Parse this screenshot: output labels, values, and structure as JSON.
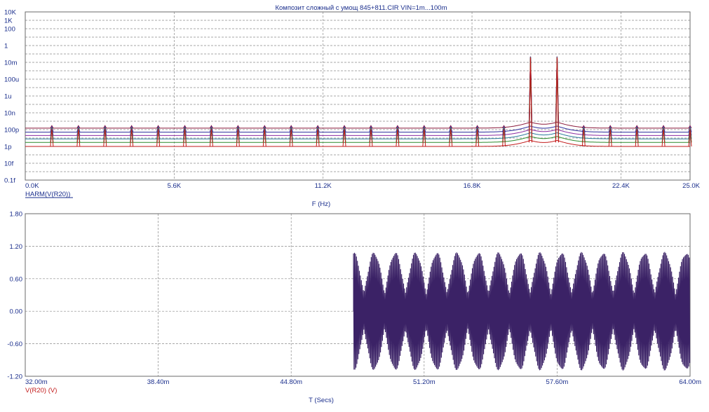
{
  "title": "Композит сложный с умощ 845+811.CIR VIN=1m...100m",
  "colors": {
    "axis_text": "#1a2e8c",
    "grid": "#8a8a8a",
    "frame": "#6a6a6a",
    "waveform": "#3b2266",
    "series": [
      "#8b1a3b",
      "#2a2a9a",
      "#8a2aa0",
      "#2a7a9a",
      "#2a8a2a",
      "#c21a1a"
    ]
  },
  "chart_data": [
    {
      "type": "line",
      "name": "spectrum",
      "trace_label": "HARM(V(R20))",
      "xlabel": "F (Hz)",
      "x_ticks": [
        "0.0K",
        "5.6K",
        "11.2K",
        "16.8K",
        "22.4K",
        "25.0K"
      ],
      "x_tick_values": [
        0,
        5600,
        11200,
        16800,
        22400,
        25000
      ],
      "xlim": [
        0,
        25000
      ],
      "y_scale": "log",
      "y_ticks": [
        "10K",
        "1K",
        "100",
        "1",
        "10m",
        "100u",
        "1u",
        "10n",
        "100p",
        "1p",
        "10f",
        "0.1f"
      ],
      "y_tick_exponents": [
        4,
        3,
        2,
        0,
        -2,
        -4,
        -6,
        -8,
        -10,
        -12,
        -14,
        -16
      ],
      "ylim": [
        "0.1f",
        "10K"
      ],
      "grid": true,
      "series": [
        {
          "floor": 1.5e-10
        },
        {
          "floor": 5e-11
        },
        {
          "floor": 2e-11
        },
        {
          "floor": 8e-12
        },
        {
          "floor": 3e-12
        },
        {
          "floor": 1e-12
        }
      ],
      "harmonic_spikes_hz": [
        1000,
        2000,
        3000,
        4000,
        5000,
        6000,
        7000,
        8000,
        9000,
        10000,
        11000,
        12000,
        13000,
        14000,
        15000,
        16000,
        17000,
        18000,
        21000,
        22000,
        23000,
        24000,
        25000
      ],
      "spike_peak": 3e-10,
      "main_peaks": [
        {
          "x": 19000,
          "y": 0.05
        },
        {
          "x": 20000,
          "y": 0.05
        }
      ]
    },
    {
      "type": "line",
      "name": "transient",
      "trace_label": "V(R20) (V)",
      "xlabel": "T (Secs)",
      "x_ticks": [
        "32.00m",
        "38.40m",
        "44.80m",
        "51.20m",
        "57.60m",
        "64.00m"
      ],
      "x_tick_values": [
        0.032,
        0.0384,
        0.0448,
        0.0512,
        0.0576,
        0.064
      ],
      "xlim": [
        0.032,
        0.064
      ],
      "y_ticks": [
        "1.80",
        "1.20",
        "0.60",
        "0.00",
        "-0.60",
        "-1.20"
      ],
      "y_tick_values": [
        1.8,
        1.2,
        0.6,
        0.0,
        -0.6,
        -1.2
      ],
      "ylim": [
        -1.2,
        1.8
      ],
      "grid": true,
      "signal_start": 0.0478,
      "envelope_min": 0.95,
      "envelope_max": 1.1,
      "beat_period": 0.001
    }
  ]
}
